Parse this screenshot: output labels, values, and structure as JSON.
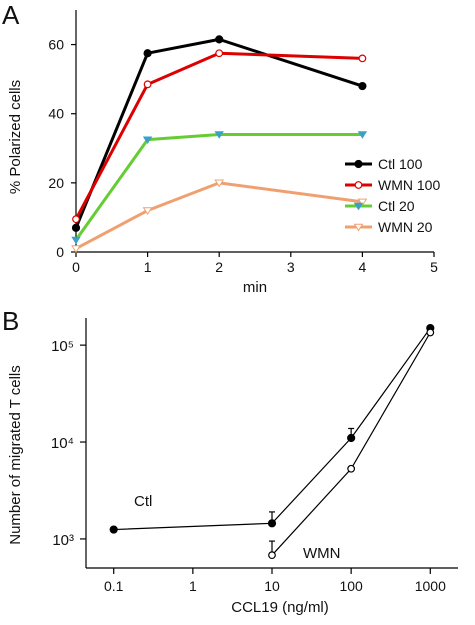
{
  "chart_data": [
    {
      "panel": "A",
      "type": "line",
      "xlabel": "min",
      "ylabel": "% Polarized cells",
      "xlim": [
        0,
        5
      ],
      "ylim": [
        0,
        70
      ],
      "xticks": [
        0,
        1,
        2,
        3,
        4,
        5
      ],
      "yticks": [
        0,
        20,
        40,
        60
      ],
      "grid": false,
      "legend_position": "right",
      "series": [
        {
          "name": "Ctl 100",
          "color": "#000000",
          "marker": "filled-circle",
          "x": [
            0,
            1,
            2,
            4
          ],
          "y": [
            7,
            57.5,
            61.5,
            48
          ]
        },
        {
          "name": "WMN 100",
          "color": "#dd0000",
          "marker": "open-circle",
          "x": [
            0,
            1,
            2,
            4
          ],
          "y": [
            9.5,
            48.5,
            57.5,
            56
          ]
        },
        {
          "name": "Ctl 20",
          "color": "#66cc33",
          "marker": "triangle-down",
          "x": [
            0,
            1,
            2,
            4
          ],
          "y": [
            3.5,
            32.5,
            34,
            34
          ]
        },
        {
          "name": "WMN 20",
          "color": "#f0a070",
          "marker": "open-triangle-down",
          "x": [
            0,
            1,
            2,
            4
          ],
          "y": [
            1,
            12,
            20,
            14.5
          ]
        }
      ]
    },
    {
      "panel": "B",
      "type": "line",
      "xlabel": "CCL19 (ng/ml)",
      "ylabel": "Number of migrated T cells",
      "xscale": "log",
      "yscale": "log",
      "xticks": [
        "0.1",
        "1",
        "10",
        "100",
        "1000"
      ],
      "yticks": [
        "10³",
        "10⁴",
        "10⁵"
      ],
      "grid": false,
      "series": [
        {
          "name": "Ctl",
          "marker": "filled-circle",
          "x": [
            0.1,
            10,
            100,
            1000
          ],
          "y": [
            1250,
            1450,
            11000,
            150000
          ],
          "err": [
            null,
            450,
            2800,
            null
          ]
        },
        {
          "name": "WMN",
          "marker": "open-circle",
          "x": [
            10,
            100,
            1000
          ],
          "y": [
            680,
            5300,
            135000
          ],
          "err": [
            270,
            null,
            null
          ]
        }
      ]
    }
  ]
}
